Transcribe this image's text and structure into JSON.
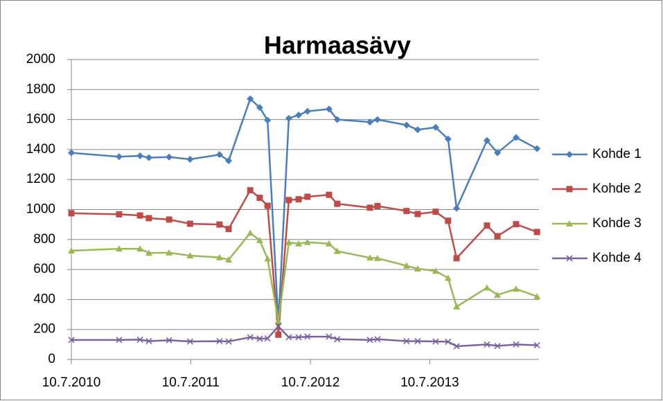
{
  "chart_data": {
    "type": "line",
    "title": "Harmaasävy",
    "x": [
      "2010-07-10",
      "2010-12-03",
      "2011-02-05",
      "2011-03-04",
      "2011-05-05",
      "2011-07-08",
      "2011-10-06",
      "2011-11-03",
      "2012-01-08",
      "2012-02-06",
      "2012-03-01",
      "2012-04-03",
      "2012-05-05",
      "2012-06-04",
      "2012-07-01",
      "2012-09-05",
      "2012-09-30",
      "2013-01-08",
      "2013-01-31",
      "2013-04-30",
      "2013-06-03",
      "2013-07-28",
      "2013-09-04",
      "2013-09-30",
      "2014-01-01",
      "2014-02-02",
      "2014-03-31",
      "2014-06-03"
    ],
    "series": [
      {
        "name": "Kohde 1",
        "color": "#4a7ebb",
        "marker": "diamond",
        "values": [
          1378,
          1352,
          1358,
          1346,
          1350,
          1335,
          1366,
          1325,
          1738,
          1680,
          1595,
          240,
          1608,
          1630,
          1655,
          1670,
          1600,
          1583,
          1600,
          1563,
          1532,
          1548,
          1470,
          1008,
          1460,
          1378,
          1480,
          1406
        ]
      },
      {
        "name": "Kohde 2",
        "color": "#be4b48",
        "marker": "square",
        "values": [
          975,
          968,
          960,
          942,
          933,
          905,
          900,
          870,
          1128,
          1078,
          1025,
          165,
          1063,
          1068,
          1085,
          1098,
          1038,
          1012,
          1023,
          990,
          970,
          985,
          925,
          675,
          893,
          822,
          902,
          850
        ]
      },
      {
        "name": "Kohde 3",
        "color": "#98b954",
        "marker": "triangle",
        "values": [
          725,
          738,
          738,
          710,
          712,
          692,
          680,
          665,
          843,
          795,
          672,
          255,
          780,
          772,
          782,
          772,
          722,
          678,
          675,
          625,
          605,
          590,
          543,
          352,
          478,
          430,
          470,
          420
        ]
      },
      {
        "name": "Kohde 4",
        "color": "#7d60a0",
        "marker": "x",
        "values": [
          130,
          130,
          132,
          122,
          128,
          120,
          122,
          120,
          148,
          138,
          140,
          220,
          148,
          148,
          152,
          152,
          135,
          130,
          135,
          122,
          122,
          120,
          118,
          88,
          100,
          90,
          100,
          95
        ]
      }
    ],
    "xlim": [
      "2010-07-10",
      "2014-06-09"
    ],
    "xticks": [
      {
        "value": "2010-07-10",
        "label": "10.7.2010"
      },
      {
        "value": "2011-07-10",
        "label": "10.7.2011"
      },
      {
        "value": "2012-07-10",
        "label": "10.7.2012"
      },
      {
        "value": "2013-07-10",
        "label": "10.7.2013"
      }
    ],
    "ylim": [
      0,
      2000
    ],
    "yticks": [
      0,
      200,
      400,
      600,
      800,
      1000,
      1200,
      1400,
      1600,
      1800,
      2000
    ],
    "grid": true,
    "legend": "right"
  }
}
